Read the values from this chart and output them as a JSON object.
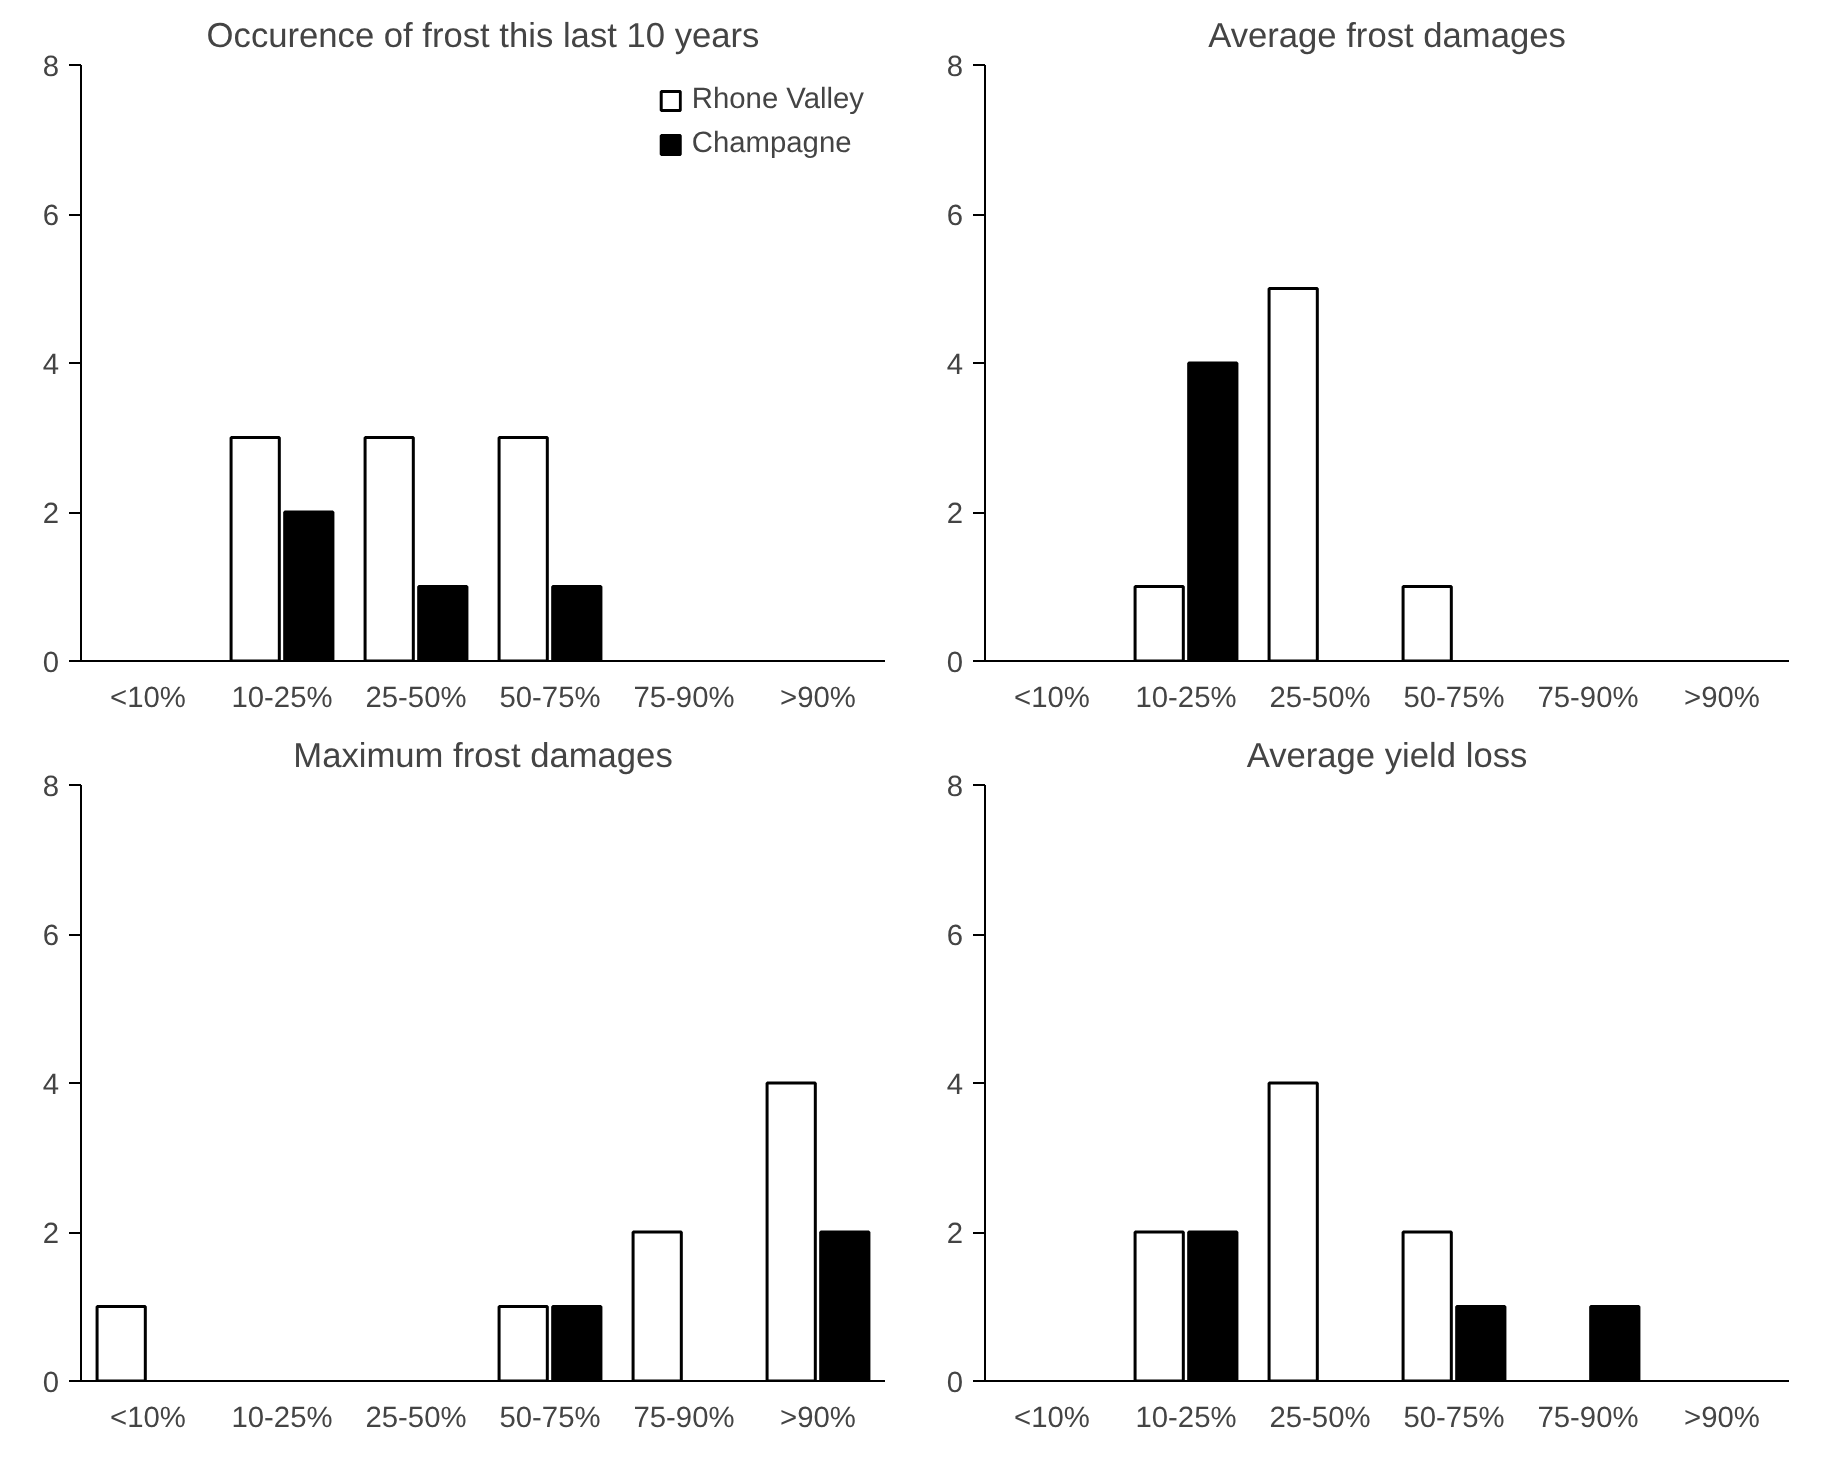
{
  "chart_data": [
    {
      "type": "bar",
      "title": "Occurence of frost this last 10 years",
      "categories": [
        "<10%",
        "10-25%",
        "25-50%",
        "50-75%",
        "75-90%",
        ">90%"
      ],
      "ylim": [
        0,
        8
      ],
      "yticks": [
        0,
        2,
        4,
        6,
        8
      ],
      "grid": false,
      "legend": "top right",
      "series": [
        {
          "name": "Rhone Valley",
          "color": "#ffffff",
          "values": [
            0,
            3,
            3,
            3,
            0,
            0
          ]
        },
        {
          "name": "Champagne",
          "color": "#000000",
          "values": [
            0,
            2,
            1,
            1,
            0,
            0
          ]
        }
      ]
    },
    {
      "type": "bar",
      "title": "Average frost damages",
      "categories": [
        "<10%",
        "10-25%",
        "25-50%",
        "50-75%",
        "75-90%",
        ">90%"
      ],
      "ylim": [
        0,
        8
      ],
      "yticks": [
        0,
        2,
        4,
        6,
        8
      ],
      "grid": false,
      "series": [
        {
          "color": "#ffffff",
          "values": [
            0,
            1,
            5,
            1,
            0,
            0
          ]
        },
        {
          "color": "#000000",
          "values": [
            0,
            4,
            0,
            0,
            0,
            0
          ]
        }
      ]
    },
    {
      "type": "bar",
      "title": "Maximum frost damages",
      "categories": [
        "<10%",
        "10-25%",
        "25-50%",
        "50-75%",
        "75-90%",
        ">90%"
      ],
      "ylim": [
        0,
        8
      ],
      "yticks": [
        0,
        2,
        4,
        6,
        8
      ],
      "grid": false,
      "series": [
        {
          "color": "#ffffff",
          "values": [
            1,
            0,
            0,
            1,
            2,
            4
          ]
        },
        {
          "color": "#000000",
          "values": [
            0,
            0,
            0,
            1,
            0,
            2
          ]
        }
      ]
    },
    {
      "type": "bar",
      "title": "Average yield loss",
      "categories": [
        "<10%",
        "10-25%",
        "25-50%",
        "50-75%",
        "75-90%",
        ">90%"
      ],
      "ylim": [
        0,
        8
      ],
      "yticks": [
        0,
        2,
        4,
        6,
        8
      ],
      "grid": false,
      "series": [
        {
          "color": "#ffffff",
          "values": [
            0,
            2,
            4,
            2,
            0,
            0
          ]
        },
        {
          "color": "#000000",
          "values": [
            0,
            2,
            0,
            1,
            1,
            0
          ]
        }
      ]
    }
  ]
}
